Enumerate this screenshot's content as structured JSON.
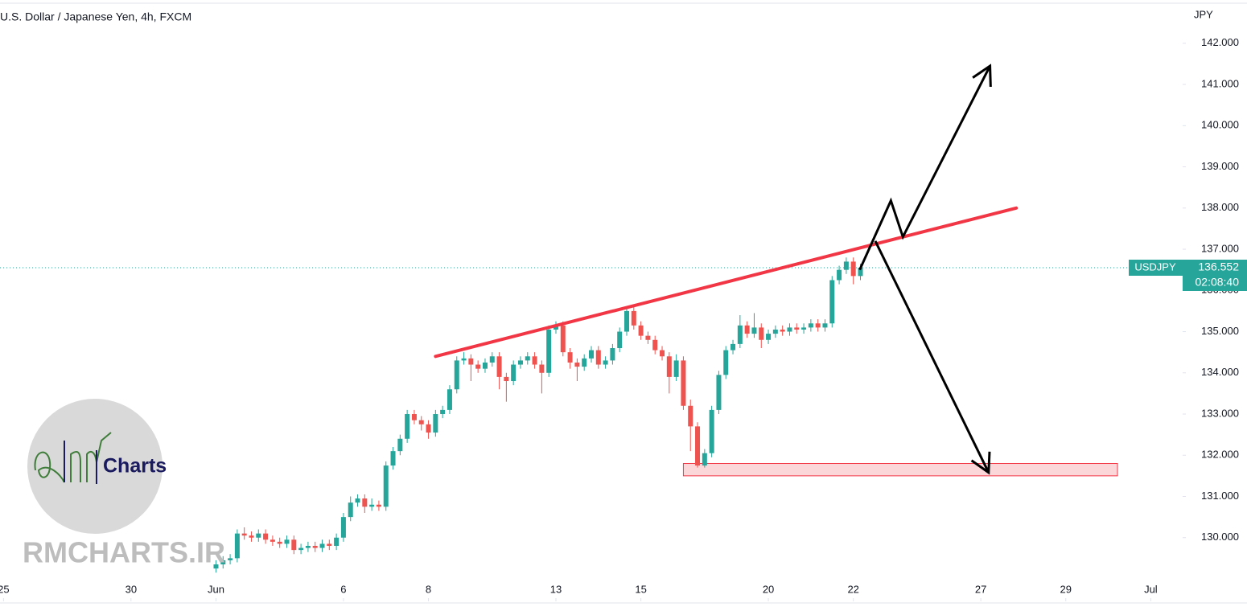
{
  "chart_data": {
    "type": "candlestick",
    "title": "U.S. Dollar / Japanese Yen, 4h, FXCM",
    "currency": "JPY",
    "symbol": "USDJPY",
    "last_price": 136.552,
    "countdown": "02:08:40",
    "logo_text": "Charts",
    "watermark": "RMCHARTS.IR",
    "up_color": "#26a69a",
    "down_color": "#ef5350",
    "xlim": [
      -30.5,
      136.5
    ],
    "ylim": [
      129.0,
      143.05
    ],
    "xticks": [
      {
        "value": -30,
        "label": "25"
      },
      {
        "value": -12,
        "label": "30"
      },
      {
        "value": 0,
        "label": "Jun"
      },
      {
        "value": 18,
        "label": "6"
      },
      {
        "value": 30,
        "label": "8"
      },
      {
        "value": 48,
        "label": "13"
      },
      {
        "value": 60,
        "label": "15"
      },
      {
        "value": 78,
        "label": "20"
      },
      {
        "value": 90,
        "label": "22"
      },
      {
        "value": 108,
        "label": "27"
      },
      {
        "value": 120,
        "label": "29"
      },
      {
        "value": 132,
        "label": "Jul"
      }
    ],
    "yticks": [
      {
        "value": 130,
        "label": "130.000"
      },
      {
        "value": 131,
        "label": "131.000"
      },
      {
        "value": 132,
        "label": "132.000"
      },
      {
        "value": 133,
        "label": "133.000"
      },
      {
        "value": 134,
        "label": "134.000"
      },
      {
        "value": 135,
        "label": "135.000"
      },
      {
        "value": 136,
        "label": "136.000"
      },
      {
        "value": 137,
        "label": "137.000"
      },
      {
        "value": 138,
        "label": "138.000"
      },
      {
        "value": 139,
        "label": "139.000"
      },
      {
        "value": 140,
        "label": "140.000"
      },
      {
        "value": 141,
        "label": "141.000"
      },
      {
        "value": 142,
        "label": "142.000"
      }
    ],
    "open": [
      129.25,
      129.35,
      129.45,
      129.5,
      130.1,
      130.05,
      130.0,
      130.1,
      129.95,
      129.9,
      129.85,
      129.95,
      129.7,
      129.75,
      129.8,
      129.75,
      129.85,
      129.8,
      130.0,
      130.5,
      130.85,
      130.95,
      130.75,
      130.8,
      130.75,
      131.75,
      132.1,
      132.4,
      133.0,
      132.85,
      132.75,
      132.55,
      133.0,
      133.1,
      133.6,
      134.3,
      134.35,
      134.2,
      134.1,
      134.25,
      134.4,
      133.9,
      133.8,
      134.2,
      134.3,
      134.4,
      134.2,
      134.0,
      135.05,
      135.15,
      134.5,
      134.25,
      134.15,
      134.35,
      134.55,
      134.2,
      134.3,
      134.6,
      135.0,
      135.5,
      135.15,
      134.9,
      134.8,
      134.55,
      134.4,
      133.9,
      134.3,
      133.2,
      132.7,
      131.75,
      132.05,
      133.1,
      133.95,
      134.55,
      134.7,
      135.15,
      134.95,
      135.1,
      134.8,
      134.95,
      135.05,
      135.0,
      135.1,
      135.05,
      135.1,
      135.2,
      135.1,
      135.2,
      136.25,
      136.5,
      136.7,
      136.35
    ],
    "high": [
      129.45,
      129.55,
      129.6,
      130.2,
      130.25,
      130.15,
      130.2,
      130.2,
      130.05,
      130.0,
      130.05,
      130.05,
      129.85,
      129.9,
      129.9,
      129.95,
      129.95,
      130.1,
      130.6,
      131.0,
      131.05,
      131.05,
      130.95,
      130.9,
      131.85,
      132.2,
      132.5,
      133.1,
      133.1,
      132.95,
      132.85,
      133.1,
      133.2,
      133.7,
      134.4,
      134.5,
      134.45,
      134.3,
      134.35,
      134.5,
      134.5,
      134.0,
      134.3,
      134.4,
      134.5,
      134.5,
      134.3,
      135.15,
      135.25,
      135.25,
      134.6,
      134.35,
      134.45,
      134.65,
      134.65,
      134.4,
      134.7,
      135.1,
      135.6,
      135.6,
      135.25,
      135.0,
      134.9,
      134.65,
      134.5,
      134.45,
      134.4,
      133.35,
      132.8,
      132.15,
      133.2,
      134.05,
      134.65,
      134.8,
      135.4,
      135.25,
      135.45,
      135.2,
      135.05,
      135.15,
      135.15,
      135.2,
      135.2,
      135.2,
      135.3,
      135.3,
      135.3,
      136.35,
      136.6,
      136.8,
      136.8,
      136.65
    ],
    "low": [
      129.15,
      129.25,
      129.35,
      129.4,
      129.95,
      129.9,
      129.9,
      129.85,
      129.8,
      129.75,
      129.75,
      129.6,
      129.6,
      129.65,
      129.65,
      129.65,
      129.7,
      129.7,
      129.9,
      130.4,
      130.75,
      130.6,
      130.65,
      130.65,
      130.65,
      131.65,
      132.0,
      132.3,
      132.75,
      132.6,
      132.4,
      132.45,
      132.9,
      133.0,
      133.5,
      134.2,
      133.8,
      134.0,
      134.0,
      134.15,
      133.6,
      133.3,
      133.7,
      134.1,
      134.2,
      134.1,
      133.5,
      133.9,
      134.95,
      134.4,
      134.1,
      133.8,
      134.05,
      134.25,
      134.1,
      134.1,
      134.2,
      134.5,
      134.9,
      135.05,
      134.8,
      134.7,
      134.45,
      134.3,
      133.5,
      133.8,
      133.1,
      132.1,
      131.7,
      131.7,
      131.95,
      133.0,
      133.85,
      134.45,
      134.6,
      134.85,
      134.85,
      134.6,
      134.7,
      134.85,
      134.9,
      134.9,
      134.95,
      134.95,
      135.0,
      135.0,
      135.0,
      135.1,
      136.15,
      136.4,
      136.15,
      136.25
    ],
    "close": [
      129.35,
      129.45,
      129.5,
      130.1,
      130.05,
      130.0,
      130.1,
      129.95,
      129.9,
      129.85,
      129.95,
      129.7,
      129.75,
      129.8,
      129.75,
      129.85,
      129.8,
      130.0,
      130.5,
      130.85,
      130.95,
      130.75,
      130.8,
      130.75,
      131.75,
      132.1,
      132.4,
      133.0,
      132.85,
      132.75,
      132.55,
      133.0,
      133.1,
      133.6,
      134.3,
      134.35,
      134.2,
      134.1,
      134.25,
      134.4,
      133.9,
      133.8,
      134.2,
      134.3,
      134.4,
      134.2,
      134.0,
      135.05,
      135.15,
      134.5,
      134.25,
      134.15,
      134.35,
      134.55,
      134.2,
      134.3,
      134.6,
      135.0,
      135.5,
      135.15,
      134.9,
      134.8,
      134.55,
      134.4,
      133.9,
      134.3,
      133.2,
      132.7,
      131.75,
      132.05,
      133.1,
      133.95,
      134.55,
      134.7,
      135.15,
      134.95,
      135.1,
      134.8,
      134.95,
      135.05,
      135.0,
      135.1,
      135.05,
      135.1,
      135.2,
      135.1,
      135.2,
      136.25,
      136.5,
      136.7,
      136.35,
      136.55
    ],
    "trendline": {
      "color": "#f23645",
      "points": [
        [
          31,
          134.4
        ],
        [
          113,
          138.0
        ]
      ]
    },
    "zone": {
      "color": "#f23645",
      "x": [
        66,
        127.3
      ],
      "y": [
        131.8,
        131.5
      ]
    },
    "arrows": [
      {
        "color": "#000000",
        "points": [
          [
            90.9,
            136.5
          ],
          [
            95.3,
            138.18
          ],
          [
            97.0,
            137.3
          ],
          [
            109.3,
            141.45
          ]
        ]
      },
      {
        "color": "#000000",
        "points": [
          [
            93.1,
            137.2
          ],
          [
            109.1,
            131.58
          ]
        ]
      }
    ]
  }
}
